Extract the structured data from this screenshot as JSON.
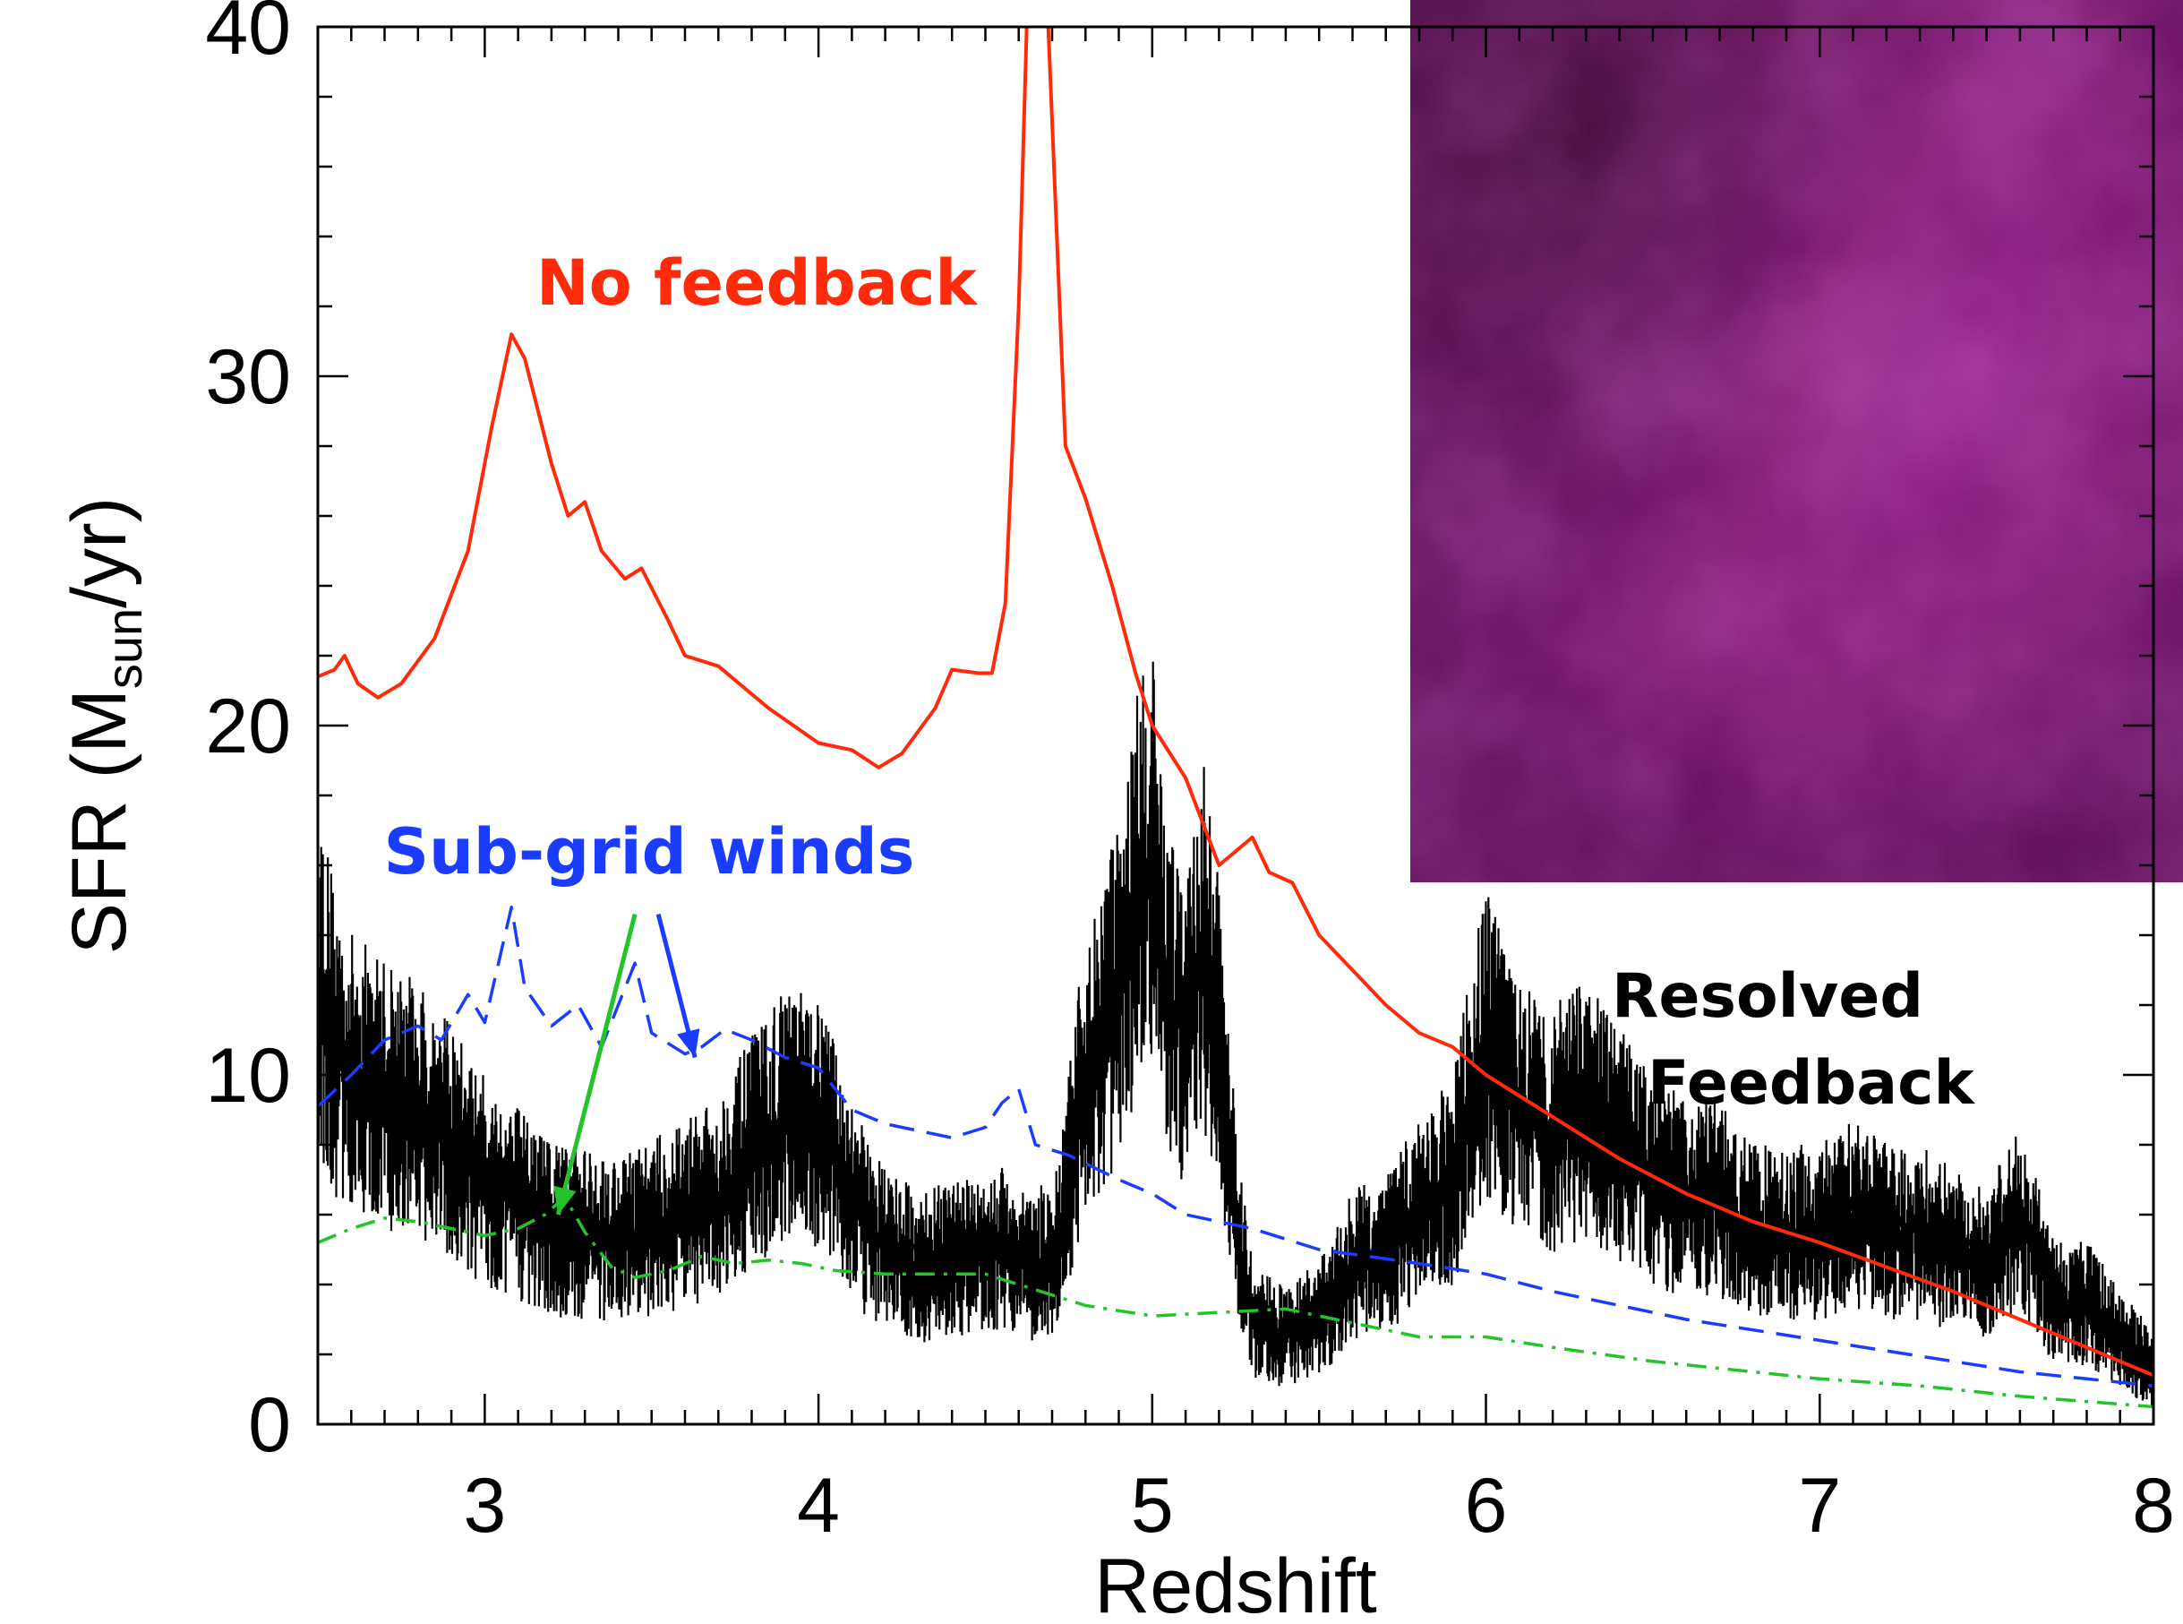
{
  "chart_data": {
    "type": "line",
    "title": "",
    "xlabel": "Redshift",
    "ylabel": {
      "prefix": "SFR (M",
      "subscript": "sun",
      "suffix": "/yr)"
    },
    "xlim": [
      2.5,
      8
    ],
    "ylim": [
      0,
      40
    ],
    "x_ticks": [
      3,
      4,
      5,
      6,
      7,
      8
    ],
    "y_ticks": [
      0,
      10,
      20,
      30,
      40
    ],
    "grid": false,
    "series": [
      {
        "name": "No feedback",
        "color": "#ff2a0a",
        "style": "solid",
        "points": [
          [
            2.5,
            21.4
          ],
          [
            2.55,
            21.6
          ],
          [
            2.58,
            22.0
          ],
          [
            2.62,
            21.2
          ],
          [
            2.68,
            20.8
          ],
          [
            2.75,
            21.2
          ],
          [
            2.85,
            22.5
          ],
          [
            2.95,
            25.0
          ],
          [
            3.02,
            28.5
          ],
          [
            3.08,
            31.2
          ],
          [
            3.12,
            30.5
          ],
          [
            3.2,
            27.5
          ],
          [
            3.25,
            26.0
          ],
          [
            3.3,
            26.4
          ],
          [
            3.35,
            25.0
          ],
          [
            3.42,
            24.2
          ],
          [
            3.47,
            24.5
          ],
          [
            3.55,
            23.0
          ],
          [
            3.6,
            22.0
          ],
          [
            3.7,
            21.7
          ],
          [
            3.85,
            20.5
          ],
          [
            4.0,
            19.5
          ],
          [
            4.1,
            19.3
          ],
          [
            4.18,
            18.8
          ],
          [
            4.25,
            19.2
          ],
          [
            4.35,
            20.5
          ],
          [
            4.4,
            21.6
          ],
          [
            4.48,
            21.5
          ],
          [
            4.52,
            21.5
          ],
          [
            4.56,
            23.5
          ],
          [
            4.6,
            32.0
          ],
          [
            4.63,
            42.0
          ],
          [
            4.68,
            42.0
          ],
          [
            4.71,
            35.0
          ],
          [
            4.74,
            28.0
          ],
          [
            4.8,
            26.5
          ],
          [
            4.88,
            24.0
          ],
          [
            4.95,
            21.5
          ],
          [
            5.0,
            20.0
          ],
          [
            5.1,
            18.5
          ],
          [
            5.2,
            16.0
          ],
          [
            5.3,
            16.8
          ],
          [
            5.35,
            15.8
          ],
          [
            5.42,
            15.5
          ],
          [
            5.5,
            14.0
          ],
          [
            5.6,
            13.0
          ],
          [
            5.7,
            12.0
          ],
          [
            5.8,
            11.2
          ],
          [
            5.9,
            10.8
          ],
          [
            6.0,
            10.0
          ],
          [
            6.2,
            8.8
          ],
          [
            6.4,
            7.6
          ],
          [
            6.6,
            6.6
          ],
          [
            6.8,
            5.8
          ],
          [
            7.0,
            5.2
          ],
          [
            7.2,
            4.5
          ],
          [
            7.4,
            3.8
          ],
          [
            7.6,
            3.0
          ],
          [
            7.8,
            2.2
          ],
          [
            8.0,
            1.4
          ]
        ]
      },
      {
        "name": "Sub-grid winds",
        "color": "#1a3cff",
        "style": "dashed",
        "points": [
          [
            2.5,
            9.1
          ],
          [
            2.6,
            10.0
          ],
          [
            2.7,
            11.0
          ],
          [
            2.8,
            11.4
          ],
          [
            2.87,
            11.0
          ],
          [
            2.95,
            12.3
          ],
          [
            3.0,
            11.5
          ],
          [
            3.08,
            14.8
          ],
          [
            3.12,
            12.5
          ],
          [
            3.2,
            11.4
          ],
          [
            3.28,
            12.0
          ],
          [
            3.35,
            10.8
          ],
          [
            3.4,
            12.0
          ],
          [
            3.45,
            13.2
          ],
          [
            3.5,
            11.2
          ],
          [
            3.6,
            10.6
          ],
          [
            3.65,
            10.8
          ],
          [
            3.72,
            11.3
          ],
          [
            3.8,
            11.0
          ],
          [
            3.9,
            10.5
          ],
          [
            4.0,
            10.2
          ],
          [
            4.1,
            9.0
          ],
          [
            4.2,
            8.6
          ],
          [
            4.3,
            8.4
          ],
          [
            4.4,
            8.2
          ],
          [
            4.5,
            8.5
          ],
          [
            4.55,
            9.2
          ],
          [
            4.6,
            9.6
          ],
          [
            4.65,
            8.0
          ],
          [
            4.75,
            7.7
          ],
          [
            4.9,
            7.0
          ],
          [
            5.0,
            6.6
          ],
          [
            5.1,
            6.0
          ],
          [
            5.3,
            5.6
          ],
          [
            5.5,
            5.0
          ],
          [
            5.8,
            4.6
          ],
          [
            6.0,
            4.3
          ],
          [
            6.2,
            3.8
          ],
          [
            6.4,
            3.4
          ],
          [
            6.6,
            3.0
          ],
          [
            6.8,
            2.7
          ],
          [
            7.0,
            2.4
          ],
          [
            7.2,
            2.1
          ],
          [
            7.4,
            1.8
          ],
          [
            7.6,
            1.5
          ],
          [
            7.8,
            1.3
          ],
          [
            8.0,
            1.1
          ]
        ]
      },
      {
        "name": "",
        "color": "#22c42a",
        "style": "dashdot",
        "points": [
          [
            2.5,
            5.2
          ],
          [
            2.6,
            5.6
          ],
          [
            2.7,
            5.9
          ],
          [
            2.8,
            5.8
          ],
          [
            2.9,
            5.6
          ],
          [
            3.0,
            5.4
          ],
          [
            3.1,
            5.6
          ],
          [
            3.18,
            6.0
          ],
          [
            3.24,
            6.5
          ],
          [
            3.3,
            5.5
          ],
          [
            3.38,
            4.5
          ],
          [
            3.45,
            4.2
          ],
          [
            3.55,
            4.4
          ],
          [
            3.65,
            4.8
          ],
          [
            3.75,
            4.6
          ],
          [
            3.85,
            4.7
          ],
          [
            3.95,
            4.6
          ],
          [
            4.05,
            4.4
          ],
          [
            4.2,
            4.3
          ],
          [
            4.35,
            4.3
          ],
          [
            4.5,
            4.3
          ],
          [
            4.6,
            4.0
          ],
          [
            4.8,
            3.4
          ],
          [
            5.0,
            3.1
          ],
          [
            5.2,
            3.2
          ],
          [
            5.4,
            3.3
          ],
          [
            5.6,
            2.9
          ],
          [
            5.8,
            2.5
          ],
          [
            6.0,
            2.5
          ],
          [
            6.2,
            2.2
          ],
          [
            6.5,
            1.8
          ],
          [
            6.8,
            1.5
          ],
          [
            7.0,
            1.3
          ],
          [
            7.3,
            1.1
          ],
          [
            7.6,
            0.8
          ],
          [
            8.0,
            0.5
          ]
        ]
      },
      {
        "name": "Resolved Feedback",
        "color": "#000000",
        "style": "noisy",
        "seed": 12345,
        "envelope": [
          [
            2.5,
            13.0
          ],
          [
            2.55,
            11.0
          ],
          [
            2.6,
            10.0
          ],
          [
            2.7,
            9.5
          ],
          [
            2.8,
            9.0
          ],
          [
            2.9,
            8.0
          ],
          [
            3.0,
            7.0
          ],
          [
            3.1,
            6.3
          ],
          [
            3.2,
            5.6
          ],
          [
            3.3,
            5.5
          ],
          [
            3.4,
            5.3
          ],
          [
            3.5,
            5.6
          ],
          [
            3.6,
            6.0
          ],
          [
            3.7,
            6.5
          ],
          [
            3.8,
            7.8
          ],
          [
            3.9,
            8.8
          ],
          [
            4.0,
            8.6
          ],
          [
            4.08,
            7.0
          ],
          [
            4.15,
            5.5
          ],
          [
            4.3,
            4.5
          ],
          [
            4.45,
            4.8
          ],
          [
            4.55,
            5.0
          ],
          [
            4.65,
            4.5
          ],
          [
            4.72,
            5.0
          ],
          [
            4.78,
            9.0
          ],
          [
            4.85,
            11.0
          ],
          [
            4.9,
            12.5
          ],
          [
            4.95,
            15.0
          ],
          [
            5.0,
            16.0
          ],
          [
            5.05,
            12.0
          ],
          [
            5.1,
            11.0
          ],
          [
            5.15,
            14.0
          ],
          [
            5.2,
            11.0
          ],
          [
            5.25,
            6.0
          ],
          [
            5.3,
            3.0
          ],
          [
            5.4,
            2.5
          ],
          [
            5.5,
            3.0
          ],
          [
            5.6,
            4.5
          ],
          [
            5.7,
            5.0
          ],
          [
            5.8,
            6.0
          ],
          [
            5.9,
            7.0
          ],
          [
            6.0,
            11.0
          ],
          [
            6.1,
            9.0
          ],
          [
            6.2,
            8.5
          ],
          [
            6.3,
            9.0
          ],
          [
            6.4,
            8.0
          ],
          [
            6.5,
            7.0
          ],
          [
            6.6,
            6.5
          ],
          [
            6.7,
            6.5
          ],
          [
            6.8,
            5.5
          ],
          [
            6.9,
            5.5
          ],
          [
            7.0,
            5.5
          ],
          [
            7.1,
            6.0
          ],
          [
            7.2,
            5.5
          ],
          [
            7.3,
            5.5
          ],
          [
            7.4,
            5.0
          ],
          [
            7.5,
            4.5
          ],
          [
            7.6,
            6.0
          ],
          [
            7.7,
            3.5
          ],
          [
            7.8,
            3.5
          ],
          [
            7.9,
            2.5
          ],
          [
            8.0,
            1.5
          ]
        ]
      }
    ],
    "annotations": [
      {
        "text": "No feedback",
        "color": "#ff2a0a"
      },
      {
        "text": "Sub-grid winds",
        "color": "#1a3cff"
      },
      {
        "text": "Resolved",
        "color": "#000000"
      },
      {
        "text": "Feedback",
        "color": "#000000"
      }
    ],
    "arrows": [
      {
        "from": [
          3.52,
          14.6
        ],
        "to": [
          3.63,
          10.5
        ],
        "color": "#1a3cff"
      },
      {
        "from": [
          3.45,
          14.6
        ],
        "to": [
          3.22,
          6.0
        ],
        "color": "#22c42a"
      }
    ],
    "inset": {
      "kind": "simulation-image",
      "colors": [
        "#3a0732",
        "#7a1870",
        "#a52598",
        "#5c0c55"
      ]
    }
  }
}
